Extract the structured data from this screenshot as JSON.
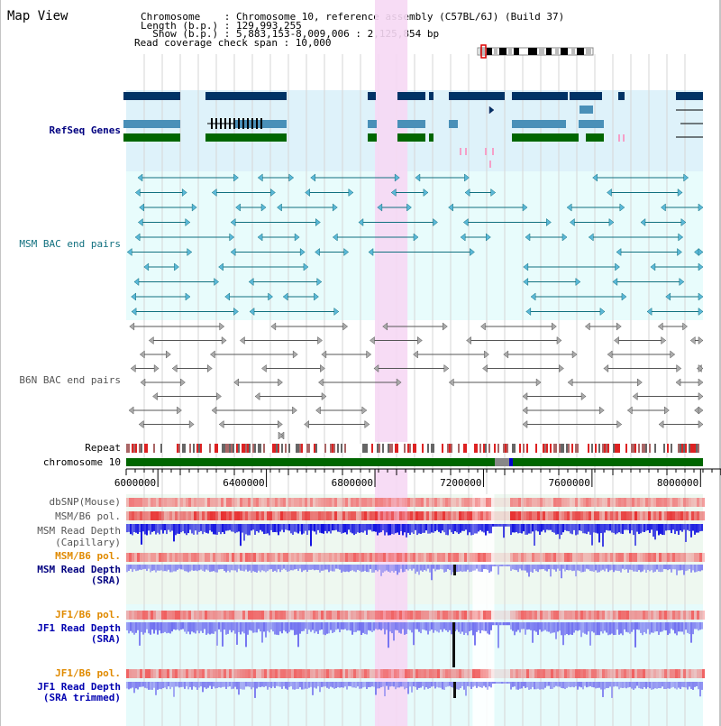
{
  "app": {
    "title": "Map View"
  },
  "info": {
    "chromosome_line": "Chromosome    : Chromosome 10, reference assembly (C57BL/6J) (Build 37)",
    "length_line": "Length (b.p.) : 129,993,255",
    "show_line": "  Show (b.p.) : 5,883,153-8,009,006 : 2,125,854 bp",
    "coverage_line": "Read coverage check span : 10,000"
  },
  "tracks": {
    "refseq": "RefSeq Genes",
    "msm_bac": "MSM BAC end pairs",
    "b6n_bac": "B6N BAC end pairs",
    "repeat": "Repeat",
    "chromosome": "chromosome 10",
    "dbsnp": "dbSNP(Mouse)",
    "msm_b6_pol_1": "MSM/B6 pol.",
    "msm_read_depth_cap_1": "MSM Read Depth",
    "msm_read_depth_cap_2": "(Capillary)",
    "msm_b6_pol_2": "MSM/B6 pol.",
    "msm_read_depth_sra_1": "MSM Read Depth",
    "msm_read_depth_sra_2": "(SRA)",
    "jf1_b6_pol_1": "JF1/B6 pol.",
    "jf1_read_depth_sra_1": "JF1 Read Depth",
    "jf1_read_depth_sra_2": "(SRA)",
    "jf1_b6_pol_2": "JF1/B6 pol.",
    "jf1_read_depth_trim_1": "JF1 Read Depth",
    "jf1_read_depth_trim_2": "(SRA trimmed)"
  },
  "ruler": {
    "ticks": [
      "6000000",
      "6400000",
      "6800000",
      "7200000",
      "7600000",
      "8000000"
    ],
    "tick_values": [
      6000000,
      6400000,
      6800000,
      7200000,
      7600000,
      8000000
    ]
  },
  "view": {
    "start": 5883153,
    "end": 8009006,
    "highlight_start": 6800000,
    "highlight_end": 6920000
  },
  "colors": {
    "refseq_bg": "#def2fa",
    "msm_bg": "#e8fcfc",
    "b6n_bg": "#ffffff",
    "highlight": "#f6d8f4",
    "gene_dark": "#003366",
    "gene_mid": "#4a90b8",
    "gene_green": "#006600",
    "msm_line": "#11707f",
    "msm_arrow": "#5bb8d8",
    "b6n_line": "#555555",
    "chromosome_band": "#006600",
    "snp": "#f07878",
    "pol": "#e83030",
    "depth_cap": "#1010e0",
    "depth_sra": "#8080f0",
    "label_blue": "#000080",
    "label_orange": "#e08a00"
  }
}
